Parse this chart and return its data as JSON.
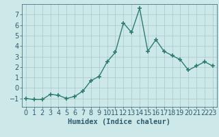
{
  "x": [
    0,
    1,
    2,
    3,
    4,
    5,
    6,
    7,
    8,
    9,
    10,
    11,
    12,
    13,
    14,
    15,
    16,
    17,
    18,
    19,
    20,
    21,
    22,
    23
  ],
  "y": [
    -1,
    -1.1,
    -1.1,
    -0.6,
    -0.7,
    -1.0,
    -0.8,
    -0.3,
    0.7,
    1.1,
    2.5,
    3.4,
    6.2,
    5.3,
    7.6,
    3.5,
    4.6,
    3.5,
    3.1,
    2.7,
    1.7,
    2.1,
    2.5,
    2.1
  ],
  "xlabel": "Humidex (Indice chaleur)",
  "ylim": [
    -1.8,
    8.0
  ],
  "xlim": [
    -0.5,
    23.5
  ],
  "yticks": [
    -1,
    0,
    1,
    2,
    3,
    4,
    5,
    6,
    7
  ],
  "xticks": [
    0,
    1,
    2,
    3,
    4,
    5,
    6,
    7,
    8,
    9,
    10,
    11,
    12,
    13,
    14,
    15,
    16,
    17,
    18,
    19,
    20,
    21,
    22,
    23
  ],
  "line_color": "#2d7d6e",
  "marker": "+",
  "bg_color": "#cce8e8",
  "grid_color": "#aac8c8",
  "axis_color": "#2d5a6e",
  "title_fontsize": 7.5,
  "label_fontsize": 7.5,
  "tick_fontsize": 7.0,
  "linewidth": 1.0,
  "markersize": 4,
  "markeredgewidth": 1.2
}
